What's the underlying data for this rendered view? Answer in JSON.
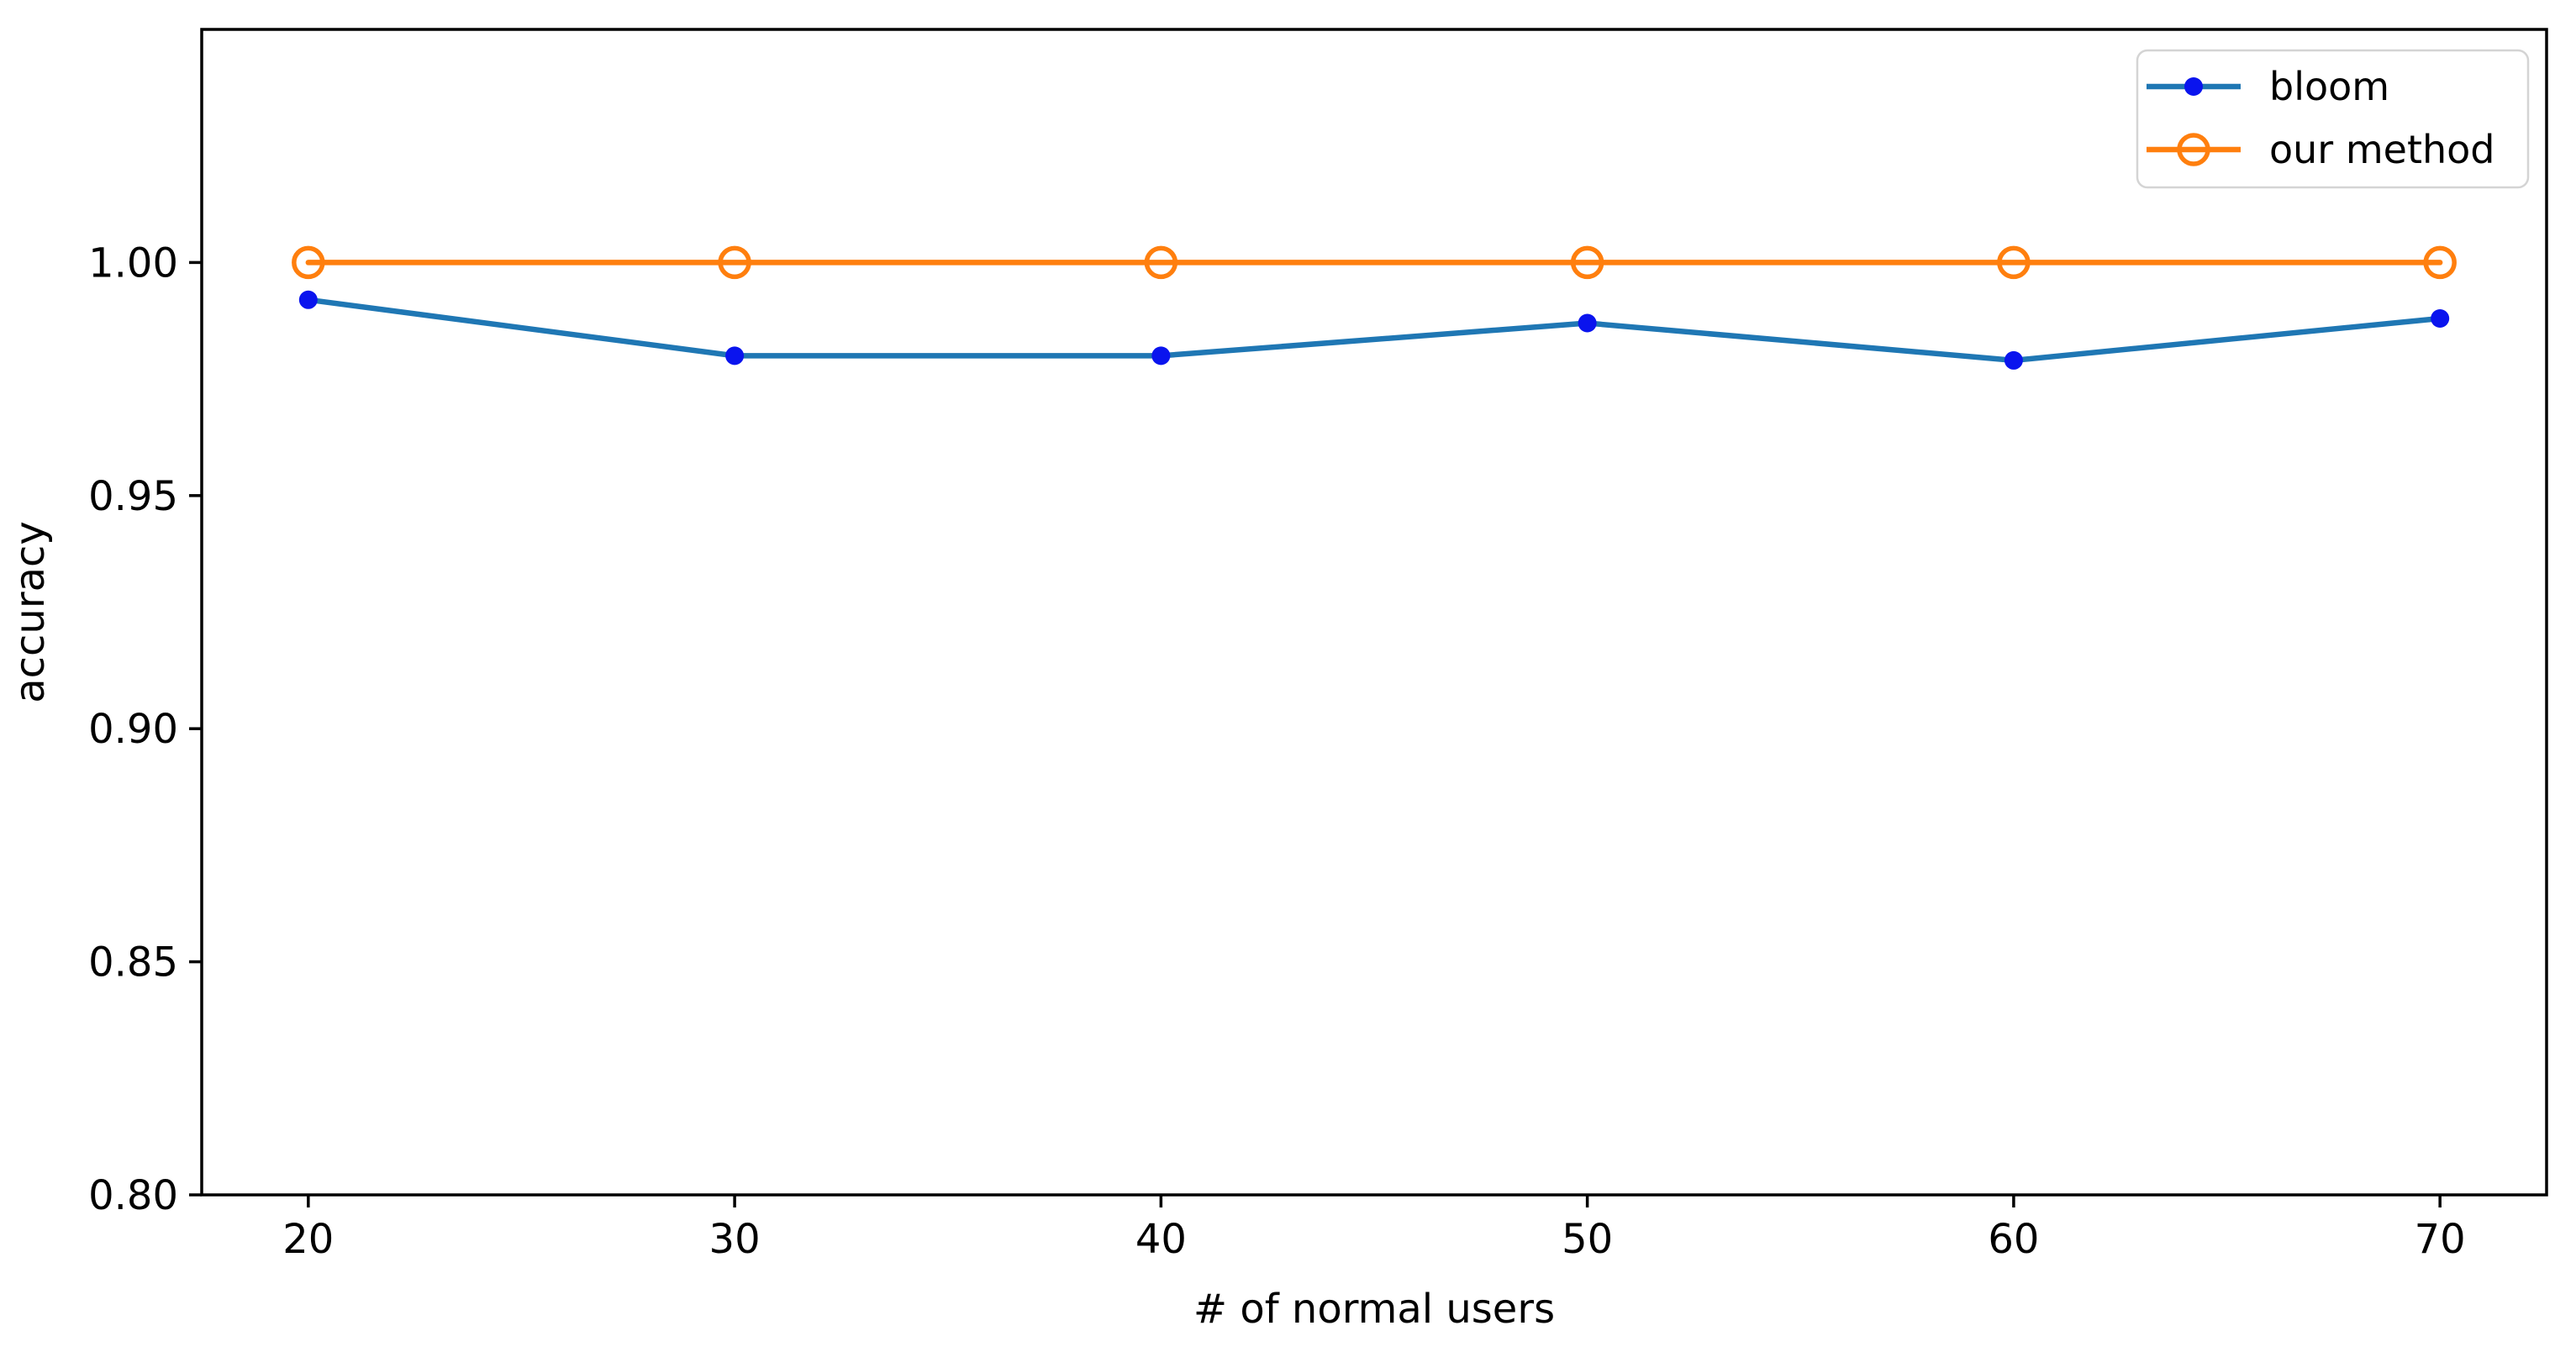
{
  "figure": {
    "background": "#ffffff"
  },
  "chart_data": {
    "type": "line",
    "xlabel": "# of normal users",
    "ylabel": "accuracy",
    "x": [
      20,
      30,
      40,
      50,
      60,
      70
    ],
    "x_tick_labels": [
      "20",
      "30",
      "40",
      "50",
      "60",
      "70"
    ],
    "y_ticks": [
      0.8,
      0.85,
      0.9,
      0.95,
      1.0
    ],
    "y_tick_labels": [
      "0.80",
      "0.85",
      "0.90",
      "0.95",
      "1.00"
    ],
    "xlim": [
      17.5,
      72.5
    ],
    "ylim": [
      0.8,
      1.05
    ],
    "grid": false,
    "legend_position": "upper right",
    "series": [
      {
        "name": "bloom",
        "values": [
          0.992,
          0.98,
          0.98,
          0.987,
          0.979,
          0.988
        ],
        "line_color": "#1f77b4",
        "marker": "filled-circle",
        "marker_color": "#0a14ee"
      },
      {
        "name": "our method",
        "values": [
          1.0,
          1.0,
          1.0,
          1.0,
          1.0,
          1.0
        ],
        "line_color": "#ff7f0e",
        "marker": "open-circle",
        "marker_color": "#ff7f0e"
      }
    ],
    "style": {
      "axis_color": "#000000",
      "tick_color": "#000000",
      "legend_border_color": "#d4d4d4",
      "plot_background": "#ffffff"
    }
  }
}
